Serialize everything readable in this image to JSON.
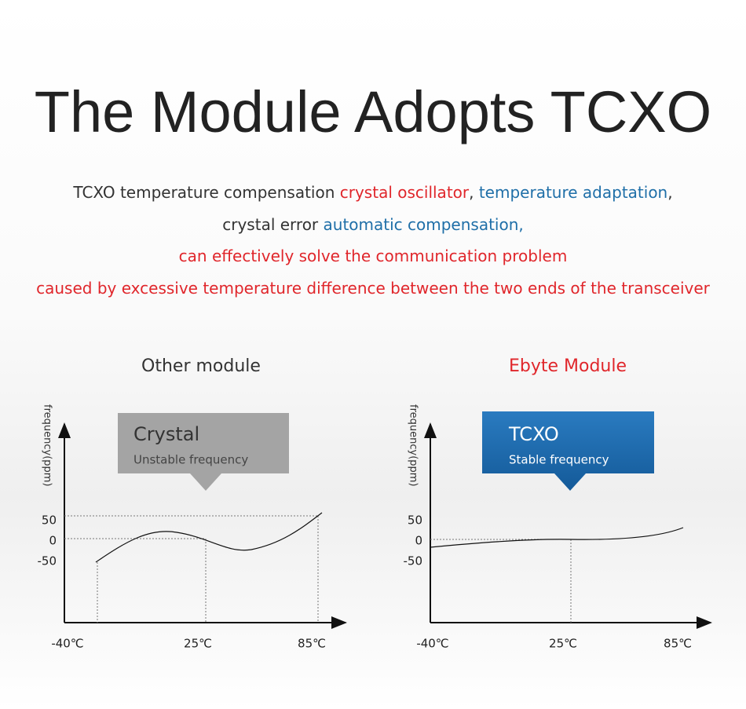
{
  "title": "The Module Adopts TCXO",
  "description": [
    [
      {
        "text": "TCXO temperature compensation ",
        "color": "#333333"
      },
      {
        "text": "crystal oscillator",
        "color": "#e0262b"
      },
      {
        "text": ", ",
        "color": "#333333"
      },
      {
        "text": "temperature adaptation",
        "color": "#1f6fa8"
      },
      {
        "text": ",",
        "color": "#333333"
      }
    ],
    [
      {
        "text": "crystal error ",
        "color": "#333333"
      },
      {
        "text": "automatic compensation,",
        "color": "#1f6fa8"
      }
    ],
    [
      {
        "text": "can effectively solve the communication problem",
        "color": "#e0262b"
      }
    ],
    [
      {
        "text": "caused by excessive temperature difference between the two ends of the transceiver",
        "color": "#e0262b"
      }
    ]
  ],
  "panels": [
    {
      "heading": "Other module",
      "callout_title": "Crystal",
      "callout_subtitle": "Unstable frequency",
      "y_axis_label": "frequency(ppm)",
      "y_labels": [
        "50",
        "0",
        "-50"
      ],
      "x_labels": [
        "-40℃",
        "25℃",
        "85℃"
      ]
    },
    {
      "heading": "Ebyte Module",
      "callout_title": "TCXO",
      "callout_subtitle": "Stable frequency",
      "y_axis_label": "frequency(ppm)",
      "y_labels": [
        "50",
        "0",
        "-50"
      ],
      "x_labels": [
        "-40℃",
        "25℃",
        "85℃"
      ]
    }
  ]
}
